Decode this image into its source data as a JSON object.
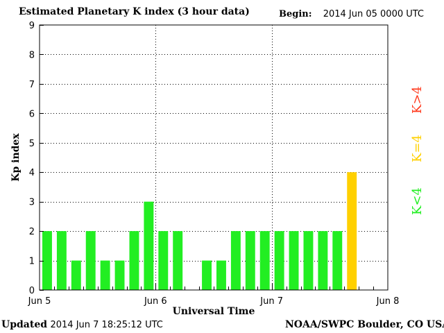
{
  "header": {
    "title": "Estimated Planetary K index (3 hour data)",
    "begin_label": "Begin:",
    "begin_value": "2014 Jun 05 0000 UTC"
  },
  "footer": {
    "updated_label": "Updated",
    "updated_value": "2014 Jun  7 18:25:12 UTC",
    "credit": "NOAA/SWPC Boulder, CO USA"
  },
  "legend": [
    {
      "label": "K>4",
      "color": "#ff3b1f"
    },
    {
      "label": "K=4",
      "color": "#ffd000"
    },
    {
      "label": "K<4",
      "color": "#22ee22"
    }
  ],
  "chart_data": {
    "type": "bar",
    "title": "Estimated Planetary K index (3 hour data)",
    "xlabel": "Universal Time",
    "ylabel": "Kp index",
    "ylim": [
      0,
      9
    ],
    "y_ticks": [
      "0",
      "1",
      "2",
      "3",
      "4",
      "5",
      "6",
      "7",
      "8",
      "9"
    ],
    "x_ticks": [
      "Jun 5",
      "Jun 6",
      "Jun 7",
      "Jun 8"
    ],
    "grid": true,
    "bins_per_day": 8,
    "days": 3,
    "values": [
      2,
      2,
      1,
      2,
      1,
      1,
      2,
      3,
      2,
      2,
      0,
      1,
      1,
      2,
      2,
      2,
      2,
      2,
      2,
      2,
      2,
      4
    ],
    "colors": {
      "below_4": "#22ee22",
      "equal_4": "#ffd000",
      "above_4": "#ff3b1f"
    }
  }
}
